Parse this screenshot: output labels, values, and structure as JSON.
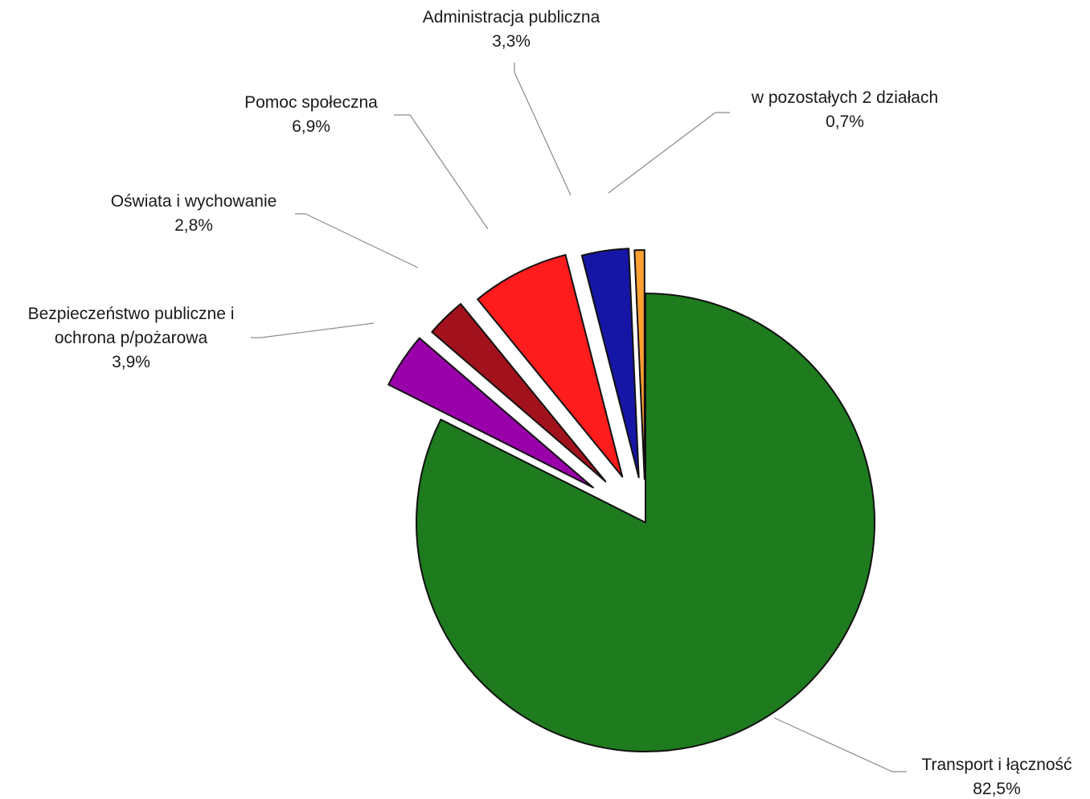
{
  "chart_data": {
    "type": "pie",
    "slices": [
      {
        "label_lines": [
          "Transport i łączność"
        ],
        "value": 82.5,
        "value_label": "82,5%",
        "color": "#1e7b1e"
      },
      {
        "label_lines": [
          "Bezpieczeństwo publiczne i",
          "ochrona p/pożarowa"
        ],
        "value": 3.9,
        "value_label": "3,9%",
        "color": "#9900aa"
      },
      {
        "label_lines": [
          "Oświata i wychowanie"
        ],
        "value": 2.8,
        "value_label": "2,8%",
        "color": "#a1121c"
      },
      {
        "label_lines": [
          "Pomoc społeczna"
        ],
        "value": 6.9,
        "value_label": "6,9%",
        "color": "#ff1c1c"
      },
      {
        "label_lines": [
          "Administracja publiczna"
        ],
        "value": 3.3,
        "value_label": "3,3%",
        "color": "#1616a6"
      },
      {
        "label_lines": [
          "w pozostałych 2 działach"
        ],
        "value": 0.7,
        "value_label": "0,7%",
        "color": "#ffa033"
      }
    ]
  }
}
